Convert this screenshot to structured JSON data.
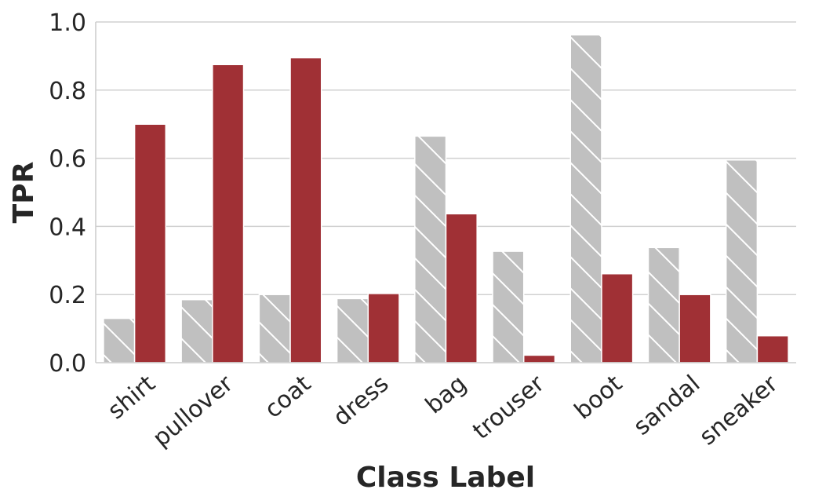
{
  "chart_data": {
    "type": "bar",
    "title": "",
    "xlabel": "Class Label",
    "ylabel": "TPR",
    "ylim": [
      0,
      1.0
    ],
    "yticks": [
      "0.0",
      "0.2",
      "0.4",
      "0.6",
      "0.8",
      "1.0"
    ],
    "grid": "horizontal",
    "legend": "none",
    "categories": [
      "shirt",
      "pullover",
      "coat",
      "dress",
      "bag",
      "trouser",
      "boot",
      "sandal",
      "sneaker"
    ],
    "series": [
      {
        "color": "#c0c0c0",
        "pattern": "hatched",
        "values": [
          0.13,
          0.185,
          0.2,
          0.188,
          0.665,
          0.327,
          0.962,
          0.338,
          0.595
        ]
      },
      {
        "color": "#a03035",
        "pattern": "solid",
        "values": [
          0.7,
          0.875,
          0.895,
          0.203,
          0.437,
          0.022,
          0.261,
          0.2,
          0.079
        ]
      }
    ]
  }
}
